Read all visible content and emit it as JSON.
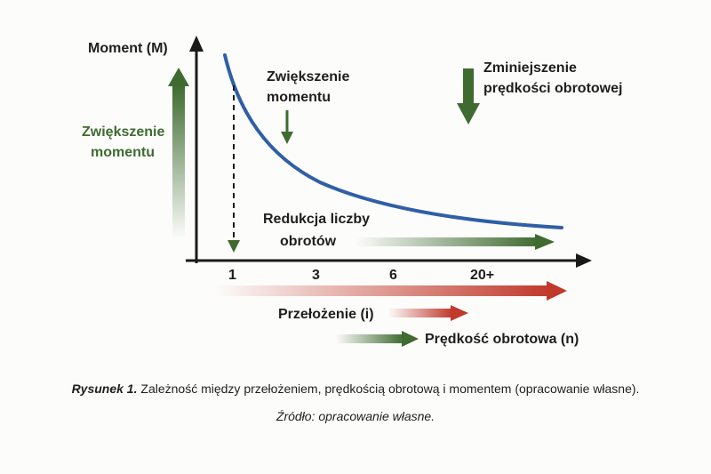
{
  "diagram": {
    "y_axis_label": "Moment (M)",
    "left_arrow_label": [
      "Zwiększenie",
      "momentu"
    ],
    "curve_annotation": [
      "Zwiększenie",
      "momentu"
    ],
    "top_right_label": [
      "Zminiejszenie",
      "prędkości obrotowej"
    ],
    "reduction_label": [
      "Redukcja liczby",
      "obrotów"
    ],
    "ratio_label": "Przełożenie (i)",
    "speed_label": "Prędkość obrotowa (n)",
    "x_ticks": [
      "1",
      "3",
      "6",
      "20+"
    ],
    "colors": {
      "curve": "#2f5fa5",
      "green": "#3f6b31",
      "red": "#c0392b",
      "axis": "#1a1a1a"
    }
  },
  "caption": {
    "label": "Rysunek 1.",
    "text": " Zależność między przełożeniem, prędkością obrotową i momentem (opracowanie własne)."
  },
  "source": "Źródło: opracowanie własne."
}
